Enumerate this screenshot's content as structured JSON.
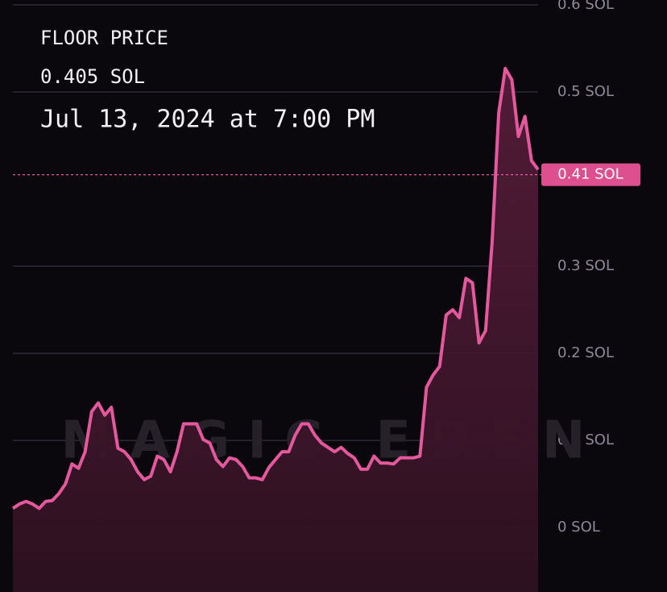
{
  "chart_data": {
    "type": "line",
    "title": "FLOOR PRICE",
    "subtitle": "0.405 SOL",
    "annotation": "Jul 13, 2024 at 7:00 PM",
    "watermark": "MAGIC EDEN",
    "color": "#e4589d",
    "fill": "#3b1528",
    "values": [
      0.022,
      0.027,
      0.03,
      0.027,
      0.022,
      0.03,
      0.031,
      0.039,
      0.05,
      0.073,
      0.068,
      0.087,
      0.133,
      0.143,
      0.129,
      0.138,
      0.091,
      0.087,
      0.078,
      0.064,
      0.055,
      0.059,
      0.082,
      0.078,
      0.064,
      0.087,
      0.119,
      0.119,
      0.119,
      0.101,
      0.097,
      0.078,
      0.07,
      0.08,
      0.078,
      0.07,
      0.057,
      0.057,
      0.055,
      0.069,
      0.078,
      0.087,
      0.087,
      0.106,
      0.119,
      0.119,
      0.106,
      0.097,
      0.092,
      0.087,
      0.092,
      0.085,
      0.08,
      0.067,
      0.067,
      0.082,
      0.074,
      0.074,
      0.073,
      0.08,
      0.08,
      0.08,
      0.082,
      0.161,
      0.175,
      0.185,
      0.244,
      0.25,
      0.241,
      0.286,
      0.281,
      0.212,
      0.226,
      0.328,
      0.476,
      0.527,
      0.514,
      0.449,
      0.472,
      0.421,
      0.411
    ],
    "last_price": {
      "value": 0.405,
      "label": "0.41 SOL"
    },
    "ylim": [
      -0.074,
      0.6056
    ],
    "yticks": [
      {
        "value": 0,
        "label": "0 SOL"
      },
      {
        "value": 0.1,
        "label": "0.1 SOL"
      },
      {
        "value": 0.2,
        "label": "0.2 SOL"
      },
      {
        "value": 0.3,
        "label": "0.3 SOL"
      },
      {
        "value": 0.5,
        "label": "0.5 SOL"
      },
      {
        "value": 0.6,
        "label": "0.6 SOL"
      }
    ],
    "grid": true
  }
}
